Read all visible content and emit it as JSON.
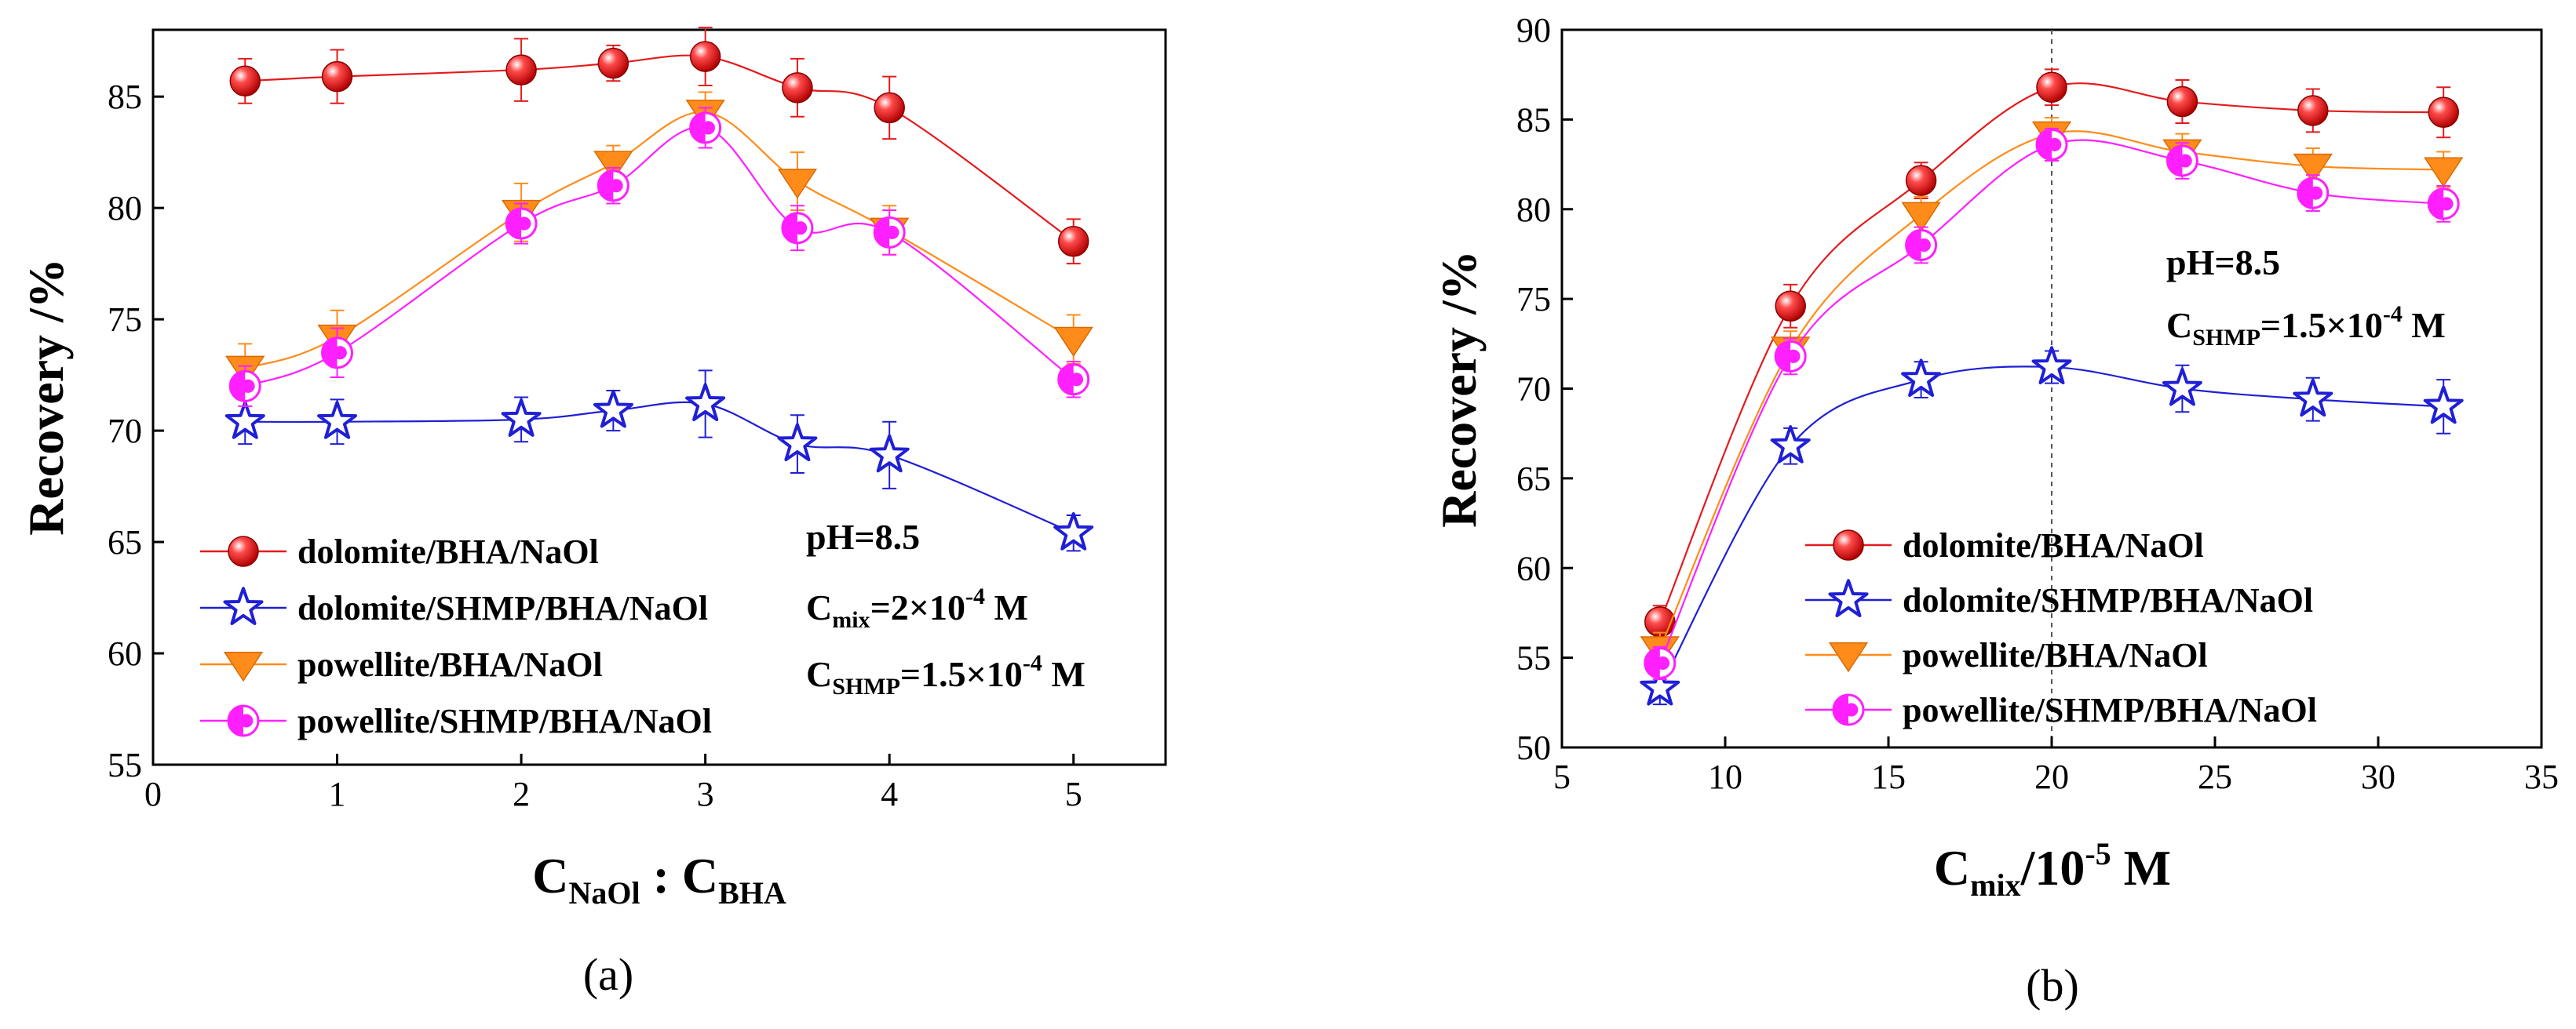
{
  "chart_data": [
    {
      "type": "line",
      "panel_label": "(a)",
      "xlabel": {
        "main": "C",
        "sub1": "NaOl",
        "sep": " : C",
        "sub2": "BHA"
      },
      "ylabel": "Recovery /%",
      "xlim": [
        0,
        5.5
      ],
      "ylim": [
        55,
        88
      ],
      "xticks": [
        0,
        1,
        2,
        3,
        4,
        5
      ],
      "yticks": [
        55,
        60,
        65,
        70,
        75,
        80,
        85
      ],
      "x": [
        0.5,
        1,
        2,
        2.5,
        3,
        3.5,
        4,
        5
      ],
      "series": [
        {
          "name": "dolomite/BHA/NaOl",
          "marker": "sphere",
          "color": "#e41a1c",
          "values": [
            85.7,
            85.9,
            86.2,
            86.5,
            86.8,
            85.4,
            84.5,
            78.5
          ],
          "errors": [
            1.0,
            1.2,
            1.4,
            0.8,
            1.3,
            1.3,
            1.4,
            1.0
          ]
        },
        {
          "name": "dolomite/SHMP/BHA/NaOl",
          "marker": "star",
          "color": "#1f1fd6",
          "values": [
            70.4,
            70.4,
            70.5,
            70.9,
            71.2,
            69.4,
            68.9,
            65.4
          ],
          "errors": [
            1.0,
            1.0,
            1.0,
            0.9,
            1.5,
            1.3,
            1.5,
            0.8
          ]
        },
        {
          "name": "powellite/BHA/NaOl",
          "marker": "triangle-down",
          "color": "#ff8c1a",
          "values": [
            72.8,
            74.2,
            79.8,
            82.0,
            84.3,
            81.2,
            79.0,
            74.1
          ],
          "errors": [
            1.1,
            1.2,
            1.3,
            0.8,
            0.9,
            1.3,
            1.1,
            1.1
          ]
        },
        {
          "name": "powellite/SHMP/BHA/NaOl",
          "marker": "half-circle",
          "color": "#ff1fff",
          "values": [
            72.0,
            73.5,
            79.3,
            81.0,
            83.6,
            79.1,
            78.9,
            72.3
          ],
          "errors": [
            0.9,
            1.1,
            0.9,
            0.8,
            0.9,
            1.0,
            1.0,
            0.8
          ]
        }
      ],
      "annotations": {
        "ph": "pH=8.5",
        "cmix": {
          "main": "C",
          "sub": "mix",
          "mid": "=2×10",
          "sup": "-4",
          "unit": " M"
        },
        "cshmp": {
          "main": "C",
          "sub": "SHMP",
          "mid": "=1.5×10",
          "sup": "-4",
          "unit": " M"
        }
      }
    },
    {
      "type": "line",
      "panel_label": "(b)",
      "xlabel": {
        "main": "C",
        "sub": "mix",
        "mid": "/10",
        "sup": "-5",
        "unit": " M"
      },
      "ylabel": "Recovery /%",
      "xlim": [
        5,
        35
      ],
      "ylim": [
        50,
        90
      ],
      "xticks": [
        5,
        10,
        15,
        20,
        25,
        30,
        35
      ],
      "yticks": [
        50,
        55,
        60,
        65,
        70,
        75,
        80,
        85,
        90
      ],
      "vline": 20,
      "x": [
        8,
        12,
        16,
        20,
        24,
        28,
        32
      ],
      "series": [
        {
          "name": "dolomite/BHA/NaOl",
          "marker": "sphere",
          "color": "#e41a1c",
          "values": [
            57.0,
            74.6,
            81.6,
            86.8,
            86.0,
            85.5,
            85.4
          ],
          "errors": [
            0.9,
            1.2,
            1.0,
            1.0,
            1.2,
            1.2,
            1.4
          ]
        },
        {
          "name": "dolomite/SHMP/BHA/NaOl",
          "marker": "star",
          "color": "#1f1fd6",
          "values": [
            53.3,
            66.8,
            70.5,
            71.2,
            70.0,
            69.4,
            69.0
          ],
          "errors": [
            0.9,
            1.0,
            1.0,
            0.9,
            1.3,
            1.2,
            1.5
          ]
        },
        {
          "name": "powellite/BHA/NaOl",
          "marker": "triangle-down",
          "color": "#ff8c1a",
          "values": [
            55.5,
            72.2,
            79.7,
            84.2,
            83.2,
            82.4,
            82.2
          ],
          "errors": [
            0.9,
            1.0,
            1.0,
            0.9,
            1.0,
            1.0,
            1.0
          ]
        },
        {
          "name": "powellite/SHMP/BHA/NaOl",
          "marker": "half-circle",
          "color": "#ff1fff",
          "values": [
            54.7,
            71.8,
            78.0,
            83.6,
            82.7,
            80.9,
            80.3
          ],
          "errors": [
            0.9,
            1.0,
            1.0,
            0.9,
            1.0,
            1.0,
            1.0
          ]
        }
      ],
      "annotations": {
        "ph": "pH=8.5",
        "cshmp": {
          "main": "C",
          "sub": "SHMP",
          "mid": "=1.5×10",
          "sup": "-4",
          "unit": " M"
        }
      }
    }
  ]
}
